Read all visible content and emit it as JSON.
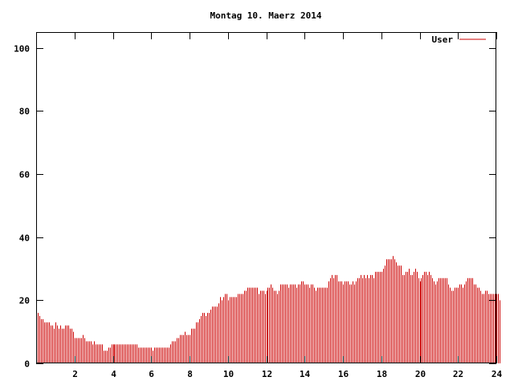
{
  "chart_data": {
    "type": "bar",
    "title": "Montag 10. Maerz 2014",
    "xlabel": "",
    "ylabel": "",
    "xlim": [
      0,
      24
    ],
    "ylim": [
      0,
      105
    ],
    "x_ticks": [
      "2",
      "4",
      "6",
      "8",
      "10",
      "12",
      "14",
      "16",
      "18",
      "20",
      "22",
      "24"
    ],
    "y_ticks": [
      "0",
      "20",
      "40",
      "60",
      "80",
      "100"
    ],
    "grid": false,
    "legend_position": "top-right",
    "interval_minutes": 5,
    "series": [
      {
        "name": "User",
        "color": "#cc0000",
        "values": [
          17,
          16,
          15,
          14,
          14,
          13,
          13,
          13,
          13,
          12,
          12,
          11,
          13,
          12,
          11,
          12,
          11,
          11,
          12,
          12,
          12,
          11,
          11,
          10,
          8,
          8,
          8,
          8,
          8,
          9,
          8,
          7,
          7,
          7,
          7,
          6,
          7,
          6,
          6,
          6,
          6,
          6,
          4,
          4,
          4,
          5,
          5,
          6,
          6,
          6,
          6,
          6,
          6,
          6,
          6,
          6,
          6,
          6,
          6,
          6,
          6,
          6,
          6,
          6,
          5,
          5,
          5,
          5,
          5,
          5,
          5,
          5,
          5,
          4,
          5,
          5,
          5,
          5,
          5,
          5,
          5,
          5,
          5,
          5,
          6,
          7,
          7,
          7,
          8,
          8,
          9,
          9,
          9,
          10,
          9,
          9,
          9,
          11,
          11,
          11,
          13,
          13,
          14,
          15,
          16,
          16,
          15,
          16,
          16,
          17,
          18,
          18,
          18,
          18,
          19,
          21,
          20,
          21,
          22,
          22,
          20,
          21,
          21,
          21,
          21,
          21,
          22,
          22,
          22,
          22,
          23,
          23,
          24,
          24,
          24,
          24,
          24,
          24,
          24,
          22,
          23,
          23,
          23,
          22,
          23,
          24,
          24,
          25,
          24,
          23,
          23,
          22,
          23,
          25,
          25,
          25,
          25,
          25,
          24,
          25,
          25,
          25,
          25,
          24,
          25,
          25,
          26,
          26,
          25,
          25,
          25,
          24,
          25,
          25,
          24,
          23,
          24,
          24,
          24,
          24,
          24,
          24,
          24,
          26,
          27,
          28,
          27,
          28,
          28,
          26,
          26,
          26,
          25,
          26,
          26,
          26,
          25,
          25,
          26,
          25,
          26,
          27,
          27,
          28,
          27,
          28,
          27,
          28,
          27,
          28,
          28,
          27,
          29,
          29,
          29,
          29,
          29,
          30,
          31,
          33,
          33,
          33,
          33,
          34,
          33,
          32,
          31,
          31,
          31,
          28,
          28,
          29,
          29,
          30,
          28,
          28,
          29,
          30,
          29,
          27,
          26,
          27,
          28,
          29,
          29,
          28,
          29,
          28,
          27,
          26,
          25,
          26,
          27,
          27,
          27,
          27,
          27,
          27,
          25,
          24,
          23,
          23,
          24,
          24,
          24,
          25,
          25,
          24,
          25,
          26,
          27,
          27,
          27,
          27,
          25,
          25,
          24,
          24,
          23,
          22,
          22,
          23,
          23,
          22,
          22,
          22,
          22,
          22,
          22,
          22,
          20
        ]
      }
    ]
  }
}
